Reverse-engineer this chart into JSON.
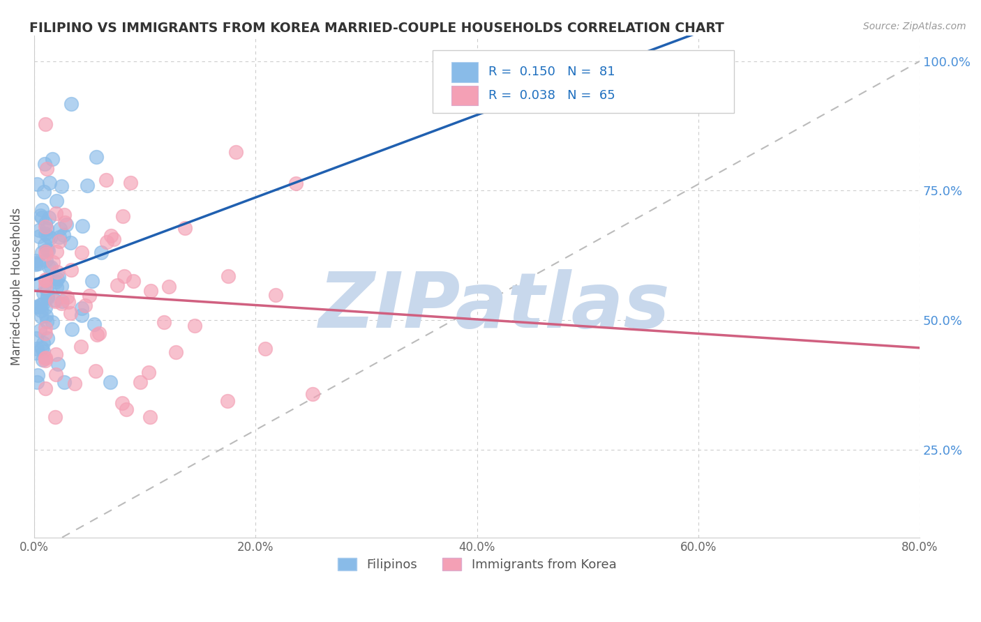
{
  "title": "FILIPINO VS IMMIGRANTS FROM KOREA MARRIED-COUPLE HOUSEHOLDS CORRELATION CHART",
  "source_text": "Source: ZipAtlas.com",
  "ylabel": "Married-couple Households",
  "x_label_filipino": "Filipinos",
  "x_label_korea": "Immigrants from Korea",
  "xlim": [
    0.0,
    0.8
  ],
  "ylim": [
    0.08,
    1.05
  ],
  "x_ticks": [
    0.0,
    0.2,
    0.4,
    0.6,
    0.8
  ],
  "x_tick_labels": [
    "0.0%",
    "20.0%",
    "40.0%",
    "60.0%",
    "80.0%"
  ],
  "y_ticks": [
    0.25,
    0.5,
    0.75,
    1.0
  ],
  "y_tick_labels": [
    "25.0%",
    "50.0%",
    "75.0%",
    "100.0%"
  ],
  "R_filipino": 0.15,
  "N_filipino": 81,
  "R_korea": 0.038,
  "N_korea": 65,
  "color_filipino": "#89BBE8",
  "color_korea": "#F4A0B5",
  "trend_color_filipino": "#2060B0",
  "trend_color_korea": "#D06080",
  "diagonal_color": "#BBBBBB",
  "watermark_color": "#C8D8EC",
  "watermark_text": "ZIPatlas",
  "background_color": "#FFFFFF",
  "grid_color": "#CCCCCC"
}
